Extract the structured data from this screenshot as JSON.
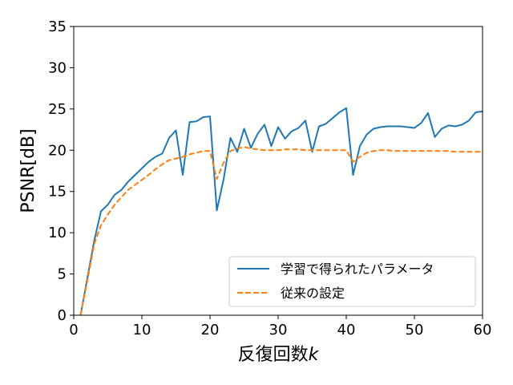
{
  "chart_data": {
    "type": "line",
    "xlabel": "反復回数",
    "xlabel_var": "k",
    "ylabel": "PSNR[dB]",
    "xlim": [
      0,
      60
    ],
    "ylim": [
      0,
      35
    ],
    "xticks": [
      0,
      10,
      20,
      30,
      40,
      50,
      60
    ],
    "yticks": [
      0,
      5,
      10,
      15,
      20,
      25,
      30,
      35
    ],
    "grid": false,
    "legend_position": "lower-right",
    "series": [
      {
        "name": "学習で得られたパラメータ",
        "color": "#1f77b4",
        "style": "solid",
        "x": [
          1,
          2,
          3,
          4,
          5,
          6,
          7,
          8,
          9,
          10,
          11,
          12,
          13,
          14,
          15,
          16,
          17,
          18,
          19,
          20,
          21,
          22,
          23,
          24,
          25,
          26,
          27,
          28,
          29,
          30,
          31,
          32,
          33,
          34,
          35,
          36,
          37,
          38,
          39,
          40,
          41,
          42,
          43,
          44,
          45,
          46,
          47,
          48,
          49,
          50,
          51,
          52,
          53,
          54,
          55,
          56,
          57,
          58,
          59,
          60
        ],
        "y": [
          0.0,
          4.5,
          9.0,
          12.6,
          13.4,
          14.6,
          15.2,
          16.2,
          17.0,
          17.8,
          18.6,
          19.2,
          19.6,
          21.5,
          22.4,
          17.0,
          23.4,
          23.5,
          24.0,
          24.1,
          12.7,
          16.5,
          21.5,
          19.8,
          22.6,
          20.3,
          22.0,
          23.1,
          20.5,
          22.8,
          21.4,
          22.3,
          22.7,
          23.6,
          19.8,
          22.9,
          23.2,
          23.9,
          24.6,
          25.1,
          17.0,
          20.5,
          21.9,
          22.6,
          22.8,
          22.9,
          22.9,
          22.9,
          22.8,
          22.7,
          23.3,
          24.5,
          21.6,
          22.6,
          23.0,
          22.9,
          23.1,
          23.6,
          24.6,
          24.7
        ]
      },
      {
        "name": "従来の設定",
        "color": "#ff7f0e",
        "style": "dashed",
        "x": [
          1,
          2,
          3,
          4,
          5,
          6,
          7,
          8,
          9,
          10,
          11,
          12,
          13,
          14,
          15,
          16,
          17,
          18,
          19,
          20,
          21,
          22,
          23,
          24,
          25,
          26,
          27,
          28,
          29,
          30,
          31,
          32,
          33,
          34,
          35,
          36,
          37,
          38,
          39,
          40,
          41,
          42,
          43,
          44,
          45,
          46,
          47,
          48,
          49,
          50,
          51,
          52,
          53,
          54,
          55,
          56,
          57,
          58,
          59,
          60
        ],
        "y": [
          0.0,
          4.2,
          8.6,
          10.9,
          12.2,
          13.4,
          14.3,
          15.2,
          15.8,
          16.4,
          17.0,
          17.7,
          18.3,
          18.8,
          19.0,
          19.2,
          19.5,
          19.7,
          19.9,
          19.9,
          16.5,
          18.5,
          19.9,
          20.2,
          20.4,
          20.2,
          20.1,
          20.0,
          20.0,
          20.0,
          20.1,
          20.1,
          20.1,
          20.0,
          20.0,
          20.0,
          20.0,
          20.0,
          20.0,
          20.0,
          18.6,
          19.2,
          19.7,
          19.9,
          20.0,
          20.0,
          19.9,
          19.9,
          19.9,
          19.9,
          19.9,
          19.9,
          19.9,
          19.9,
          19.9,
          19.8,
          19.8,
          19.8,
          19.8,
          19.8
        ]
      }
    ]
  }
}
